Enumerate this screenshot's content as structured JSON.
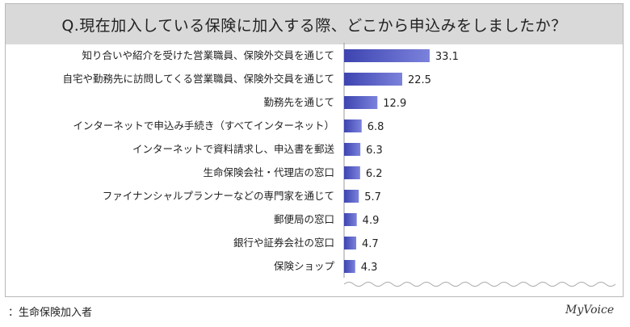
{
  "chart_data": {
    "type": "bar",
    "orientation": "horizontal",
    "title": "Q.現在加入している保険に加入する際、どこから申込みをしましたか？",
    "categories": [
      "知り合いや紹介を受けた営業職員、保険外交員を通じて",
      "自宅や勤務先に訪問してくる営業職員、保険外交員を通じて",
      "勤務先を通じて",
      "インターネットで申込み手続き（すべてインターネット）",
      "インターネットで資料請求し、申込書を郵送",
      "生命保険会社・代理店の窓口",
      "ファイナンシャルプランナーなどの専門家を通じて",
      "郵便局の窓口",
      "銀行や証券会社の窓口",
      "保険ショップ"
    ],
    "values": [
      33.1,
      22.5,
      12.9,
      6.8,
      6.3,
      6.2,
      5.7,
      4.9,
      4.7,
      4.3
    ],
    "value_labels": [
      "33.1",
      "22.5",
      "12.9",
      "6.8",
      "6.3",
      "6.2",
      "5.7",
      "4.9",
      "4.7",
      "4.3"
    ],
    "xlim": [
      0,
      100
    ],
    "axis_break": true,
    "bar_color": "#5b62c8",
    "grid": false
  },
  "footer": {
    "note": "：生命保険加入者",
    "logo_text": "MyVoice"
  }
}
